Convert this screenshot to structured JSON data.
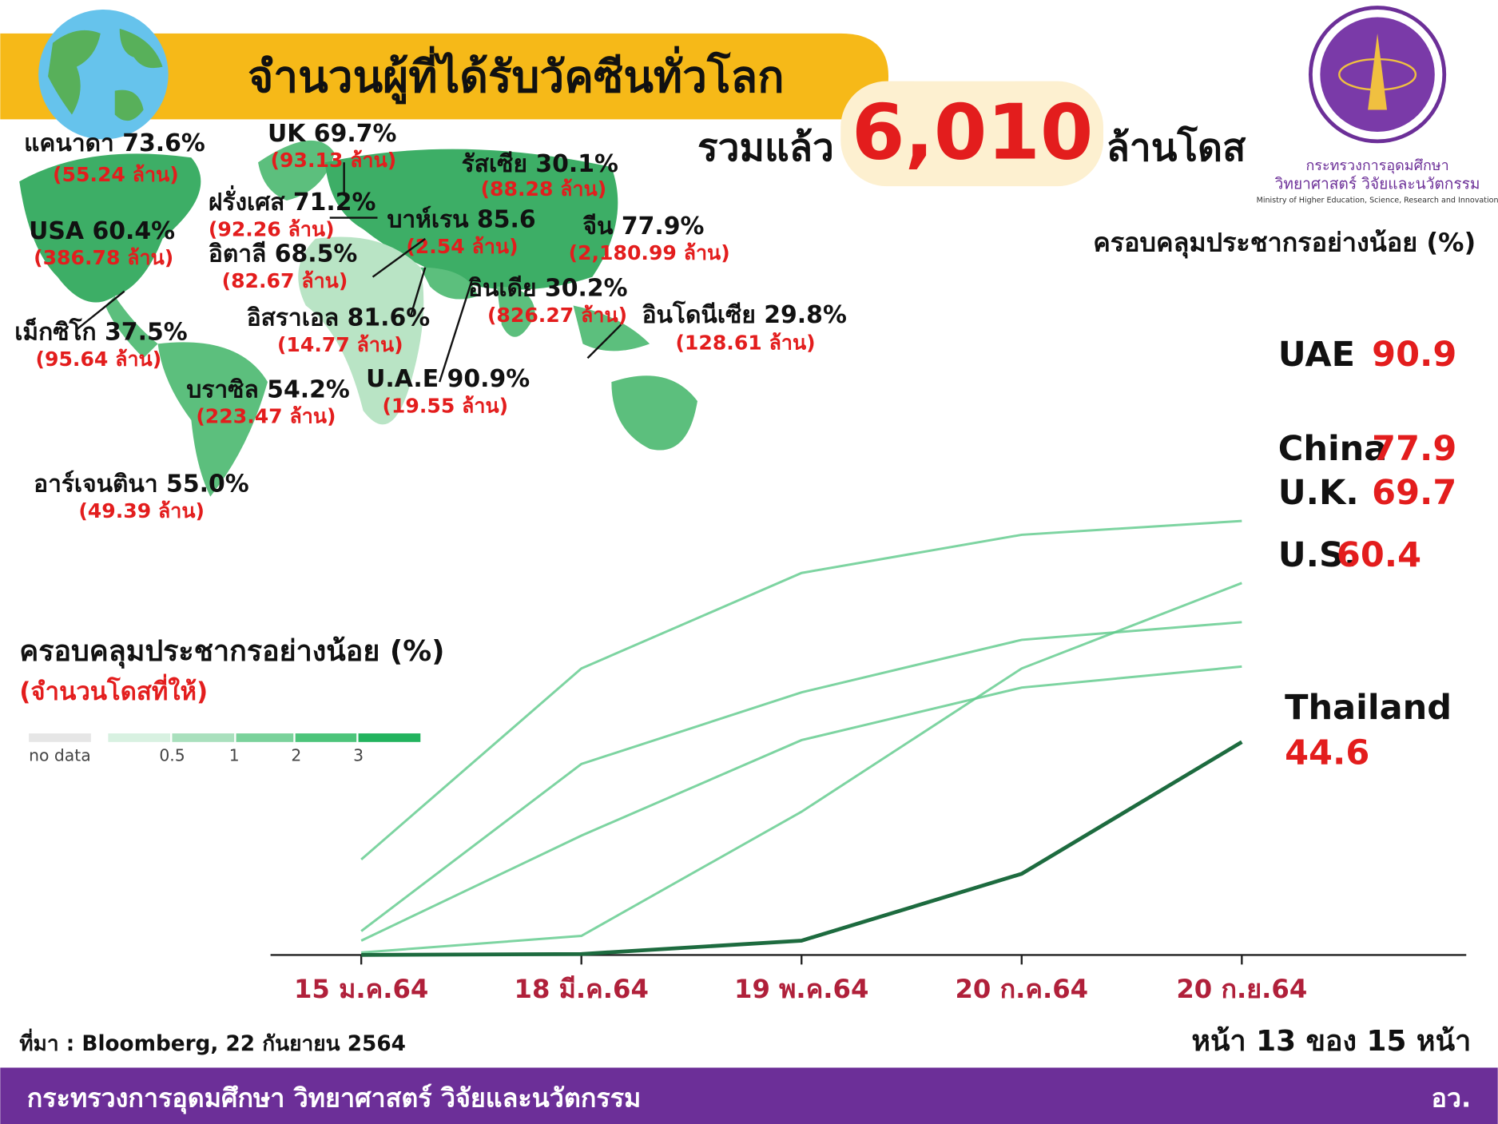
{
  "header": {
    "title": "จำนวนผู้ที่ได้รับวัคซีนทั่วโลก",
    "total_prefix": "รวมแล้ว",
    "total": "6,010",
    "total_suffix": "ล้านโดส"
  },
  "logo": {
    "line1": "กระทรวงการอุดมศึกษา",
    "line2": "วิทยาศาสตร์ วิจัยและนวัตกรรม",
    "line3": "Ministry of Higher Education, Science, Research and Innovation"
  },
  "map": {
    "labels": [
      {
        "name": "แคนาดา 73.6%",
        "doses": "(55.24 ล้าน)"
      },
      {
        "name": "UK 69.7%",
        "doses": "(93.13 ล้าน)"
      },
      {
        "name": "รัสเซีย 30.1%",
        "doses": "(88.28 ล้าน)"
      },
      {
        "name": "ฝรั่งเศส 71.2%",
        "doses": "(92.26 ล้าน)"
      },
      {
        "name": "USA 60.4%",
        "doses": "(386.78 ล้าน)"
      },
      {
        "name": "บาห์เรน 85.6",
        "doses": "(2.54 ล้าน)"
      },
      {
        "name": "จีน 77.9%",
        "doses": "(2,180.99 ล้าน)"
      },
      {
        "name": "อิตาลี 68.5%",
        "doses": "(82.67 ล้าน)"
      },
      {
        "name": "อินเดีย 30.2%",
        "doses": "(826.27 ล้าน)"
      },
      {
        "name": "อิสราเอล 81.6%",
        "doses": "(14.77 ล้าน)"
      },
      {
        "name": "อินโดนีเซีย 29.8%",
        "doses": "(128.61 ล้าน)"
      },
      {
        "name": "เม็กซิโก 37.5%",
        "doses": "(95.64 ล้าน)"
      },
      {
        "name": "บราซิล 54.2%",
        "doses": "(223.47 ล้าน)"
      },
      {
        "name": "U.A.E 90.9%",
        "doses": "(19.55 ล้าน)"
      },
      {
        "name": "อาร์เจนตินา 55.0%",
        "doses": "(49.39 ล้าน)"
      }
    ],
    "legend": {
      "title": "ครอบคลุมประชากรอย่างน้อย (%)",
      "subtitle": "(จำนวนโดสที่ให้)",
      "items": [
        "no data",
        "0.5",
        "1",
        "2",
        "3"
      ]
    }
  },
  "chart_data": {
    "type": "line",
    "title": "ครอบคลุมประชากรอย่างน้อย (%)",
    "categories": [
      "15 ม.ค.64",
      "18 มี.ค.64",
      "19 พ.ค.64",
      "20 ก.ค.64",
      "20 ก.ย.64"
    ],
    "ylim": [
      0,
      140
    ],
    "series": [
      {
        "name": "UAE",
        "color": "#5cc98a",
        "values": [
          20,
          60,
          80,
          88,
          90.9
        ]
      },
      {
        "name": "China",
        "color": "#5cc98a",
        "values": [
          0.5,
          4,
          30,
          60,
          77.9
        ]
      },
      {
        "name": "U.K.",
        "color": "#5cc98a",
        "values": [
          5,
          40,
          55,
          66,
          69.7
        ]
      },
      {
        "name": "U.S.",
        "color": "#5cc98a",
        "values": [
          3,
          25,
          45,
          56,
          60.4
        ]
      },
      {
        "name": "Thailand",
        "color": "#1d6b3f",
        "values": [
          0,
          0.2,
          3,
          17,
          44.6
        ]
      }
    ]
  },
  "source": "ที่มา : Bloomberg, 22 กันยายน 2564",
  "page": "หน้า 13 ของ 15 หน้า",
  "footer": {
    "left": "กระทรวงการอุดมศึกษา วิทยาศาสตร์ วิจัยและนวัตกรรม",
    "right": "อว."
  }
}
